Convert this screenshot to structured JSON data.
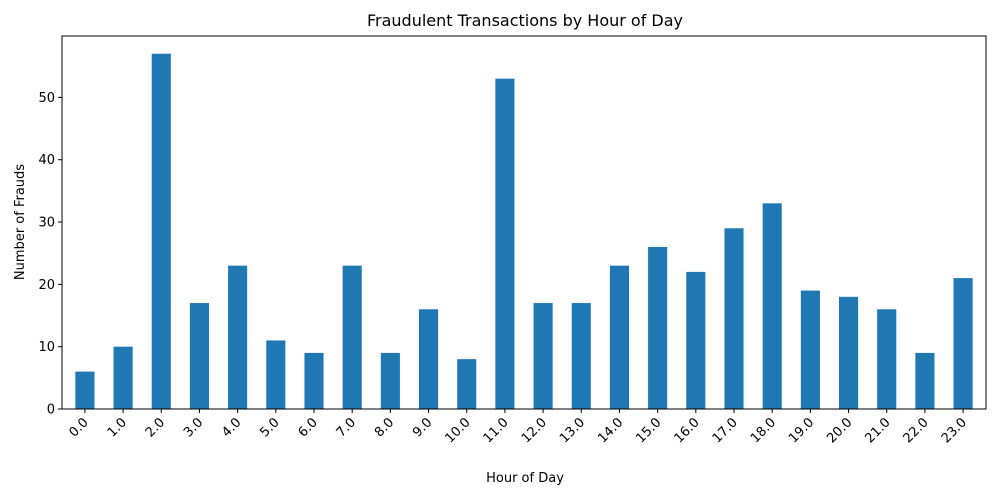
{
  "chart_data": {
    "type": "bar",
    "title": "Fraudulent Transactions by Hour of Day",
    "xlabel": "Hour of Day",
    "ylabel": "Number of Frauds",
    "categories": [
      "0.0",
      "1.0",
      "2.0",
      "3.0",
      "4.0",
      "5.0",
      "6.0",
      "7.0",
      "8.0",
      "9.0",
      "10.0",
      "11.0",
      "12.0",
      "13.0",
      "14.0",
      "15.0",
      "16.0",
      "17.0",
      "18.0",
      "19.0",
      "20.0",
      "21.0",
      "22.0",
      "23.0"
    ],
    "values": [
      6,
      10,
      57,
      17,
      23,
      11,
      9,
      23,
      9,
      16,
      8,
      53,
      17,
      17,
      23,
      26,
      22,
      29,
      33,
      19,
      18,
      16,
      9,
      21
    ],
    "ylim": [
      0,
      59.85
    ],
    "yticks": [
      0,
      10,
      20,
      30,
      40,
      50
    ],
    "bar_color": "#1f77b4",
    "grid": false,
    "legend": "none"
  }
}
